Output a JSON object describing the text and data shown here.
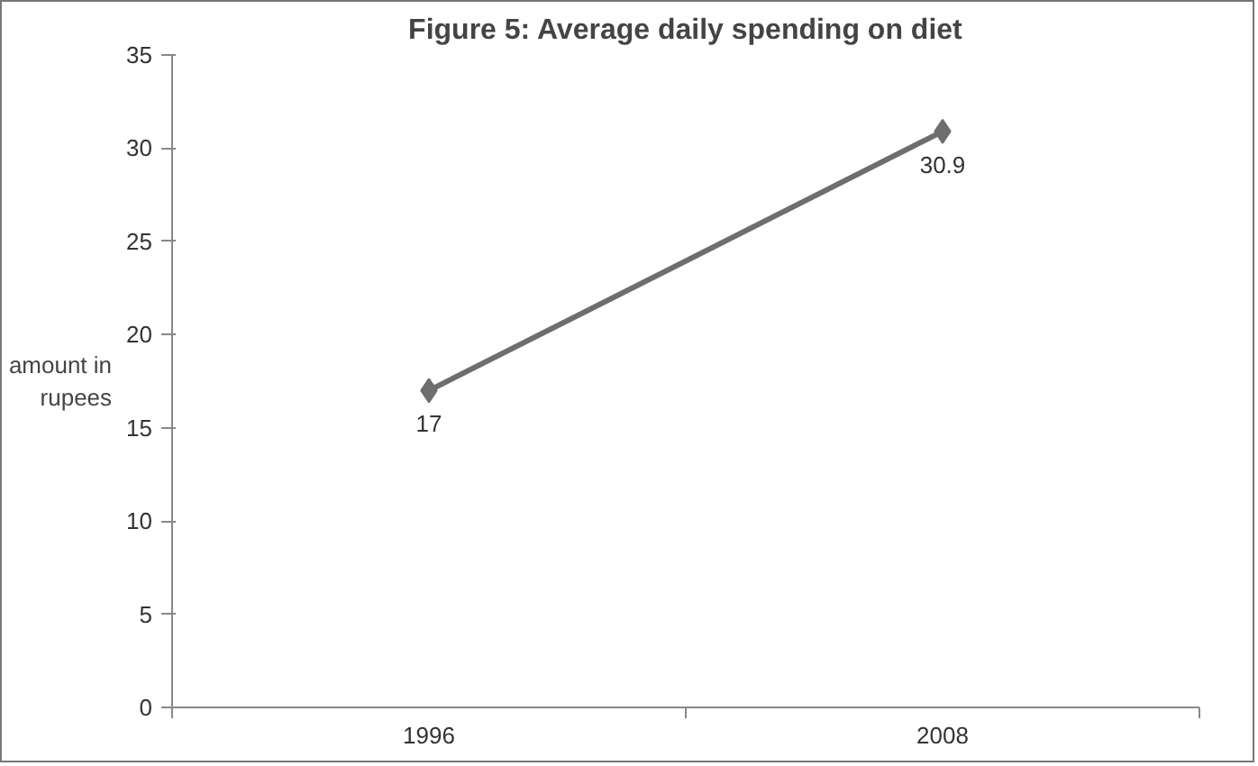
{
  "chart_data": {
    "type": "line",
    "title": "Figure 5: Average daily spending on diet",
    "ylabel": "amount in rupees",
    "categories": [
      "1996",
      "2008"
    ],
    "series": [
      {
        "color": "#6e6e6e",
        "values": [
          17,
          30.9
        ]
      }
    ],
    "ylim": [
      0,
      35
    ],
    "yticks": [
      0,
      5,
      10,
      15,
      20,
      25,
      30,
      35
    ],
    "grid": false,
    "marker": "diamond",
    "line_style": "solid",
    "data_labels": true
  }
}
